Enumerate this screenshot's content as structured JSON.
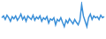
{
  "chart_data": {
    "type": "line",
    "color": "#3a8fd8",
    "grid": false,
    "tick_labels": false,
    "ylim": [
      0,
      100
    ],
    "categories": [
      null,
      null,
      null,
      null,
      null,
      null,
      null,
      null,
      null,
      null,
      null,
      null,
      null,
      null,
      null,
      null,
      null,
      null,
      null,
      null,
      null,
      null,
      null,
      null,
      null,
      null,
      null,
      null,
      null,
      null,
      null,
      null,
      null,
      null,
      null,
      null,
      null,
      null,
      null,
      null,
      null,
      null,
      null,
      null,
      null,
      null,
      null,
      null,
      null,
      null,
      null,
      null,
      null,
      null,
      null,
      null,
      null,
      null,
      null,
      null
    ],
    "values": [
      55,
      60,
      50,
      62,
      55,
      45,
      58,
      52,
      60,
      48,
      55,
      65,
      50,
      58,
      45,
      60,
      55,
      50,
      62,
      48,
      57,
      52,
      60,
      45,
      55,
      50,
      58,
      40,
      52,
      48,
      55,
      35,
      50,
      45,
      55,
      42,
      30,
      48,
      40,
      52,
      45,
      38,
      50,
      42,
      35,
      48,
      92,
      60,
      45,
      30,
      55,
      65,
      50,
      60,
      55,
      58,
      50,
      62,
      55,
      58
    ]
  }
}
